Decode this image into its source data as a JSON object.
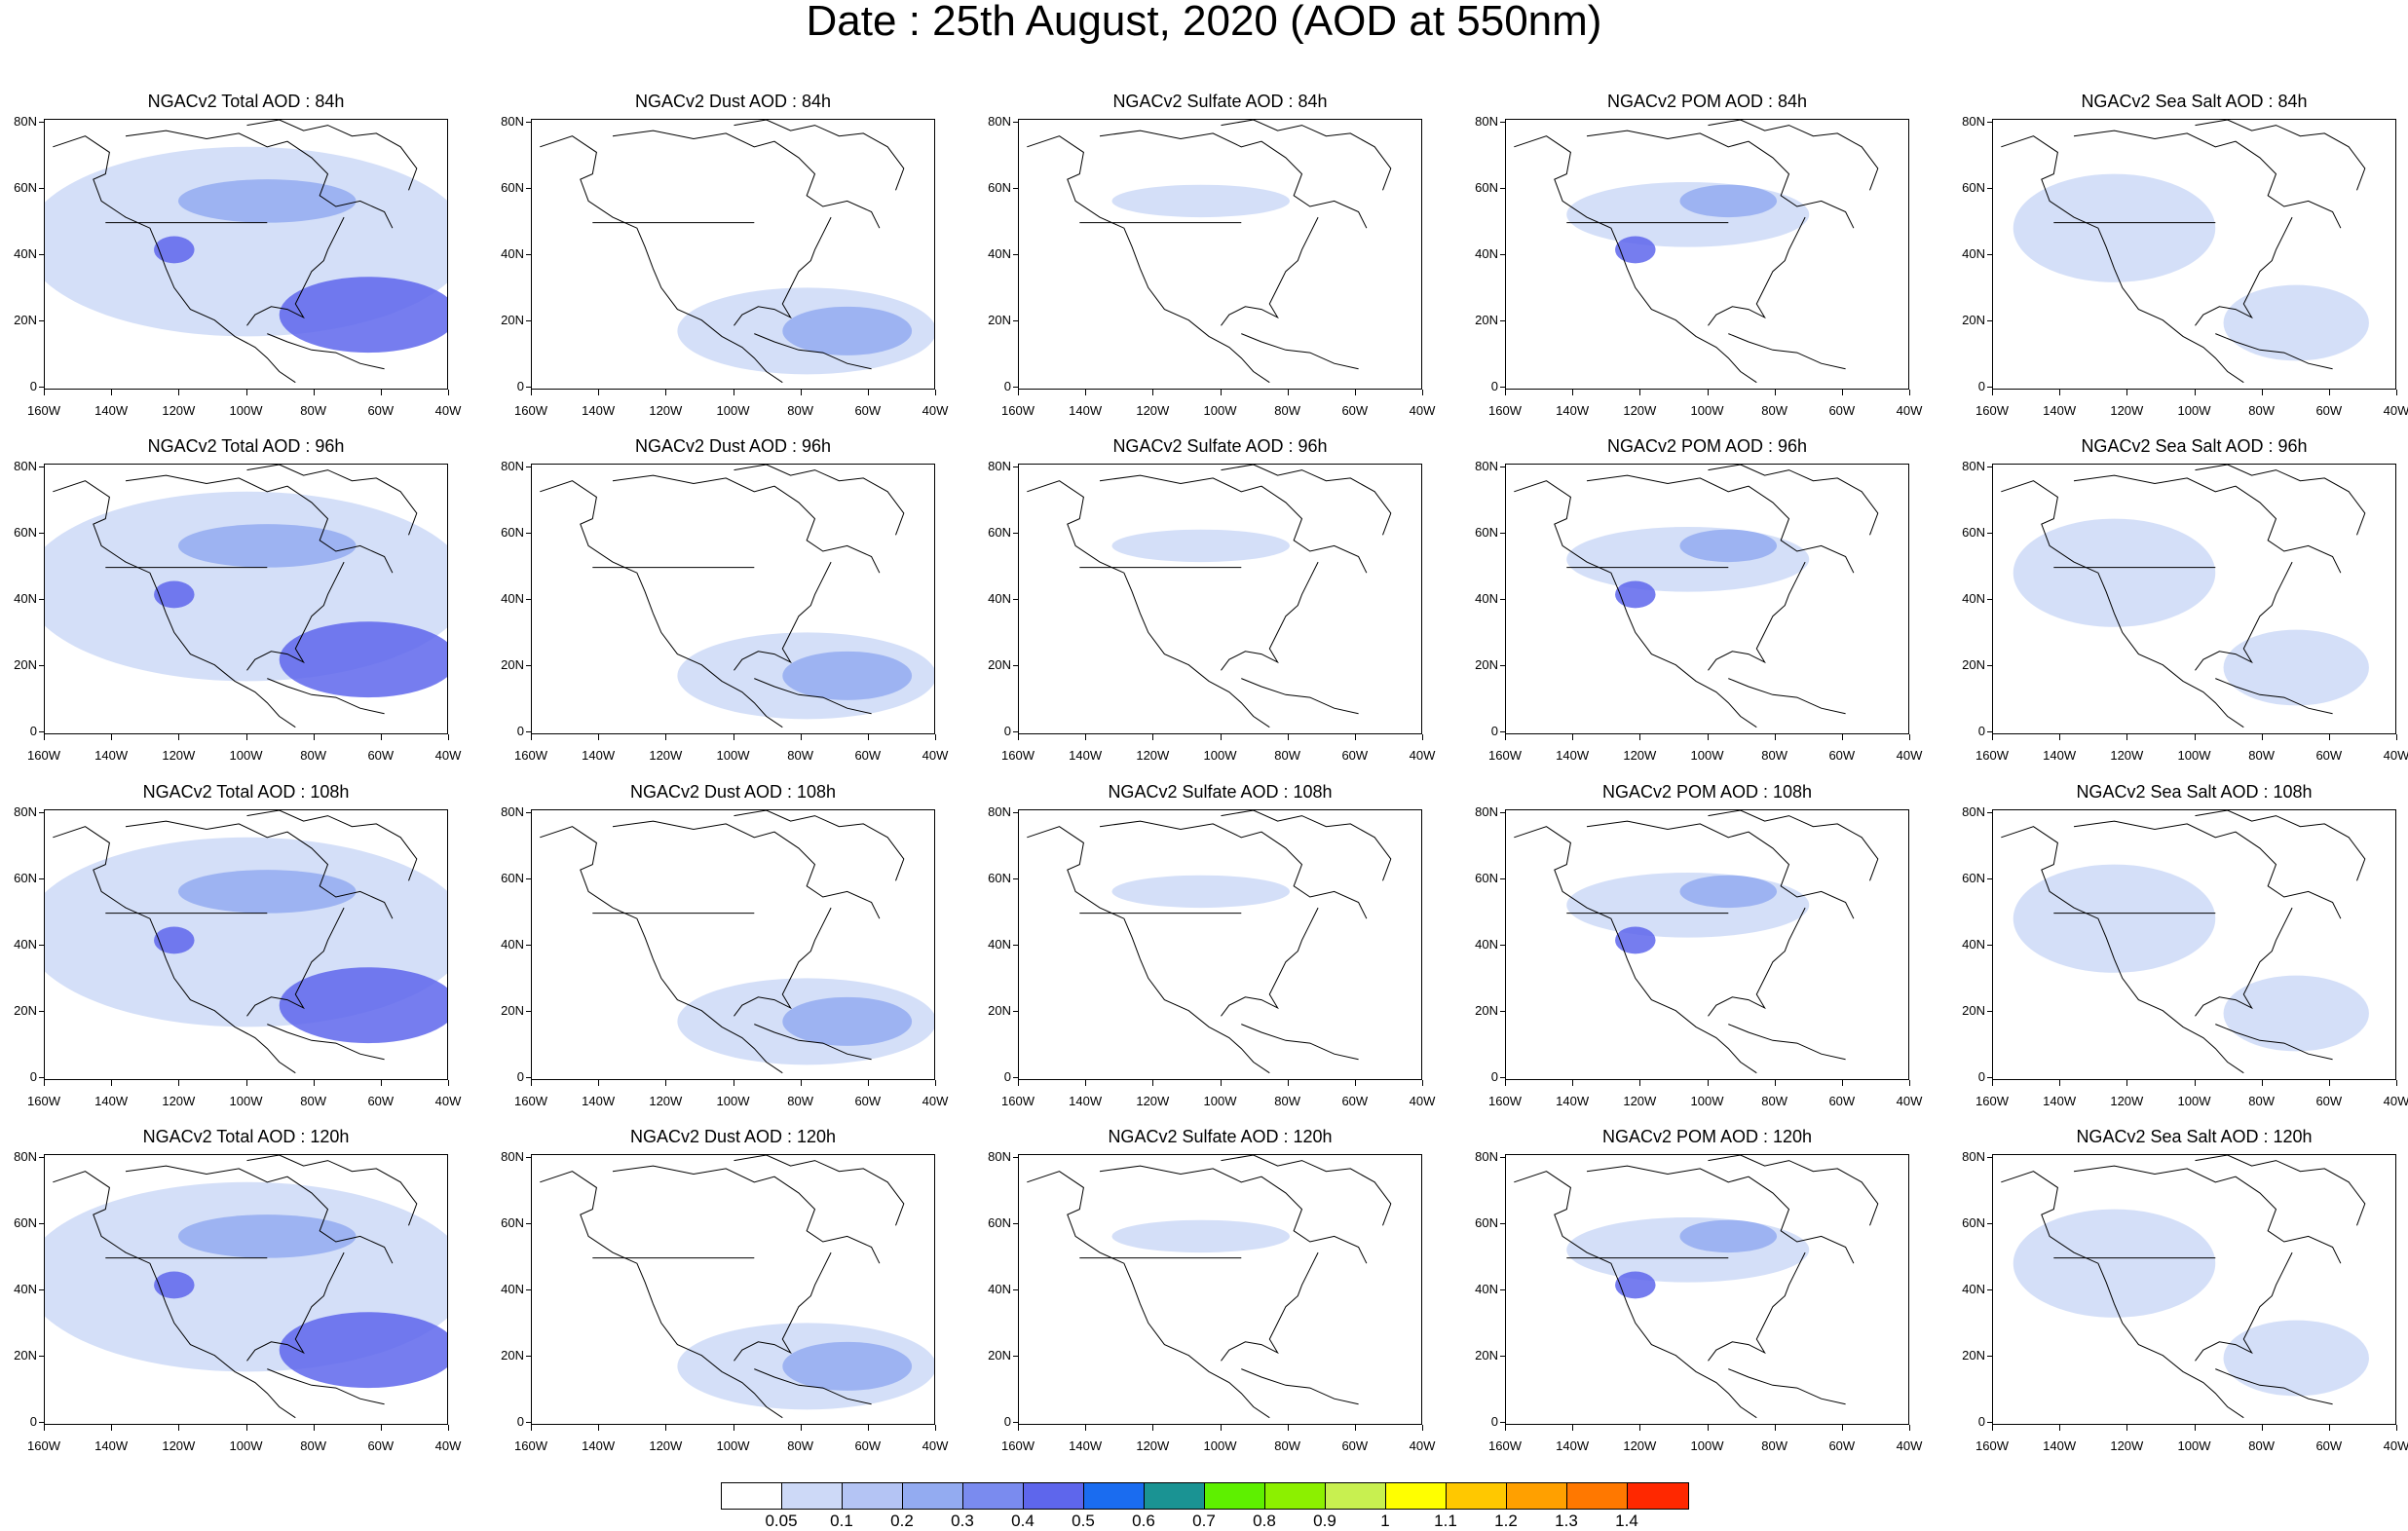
{
  "title": "Date : 25th August, 2020 (AOD at 550nm)",
  "panel_titles": [
    [
      "NGACv2 Total AOD : 84h",
      "NGACv2 Dust AOD : 84h",
      "NGACv2 Sulfate AOD : 84h",
      "NGACv2 POM AOD : 84h",
      "NGACv2 Sea Salt AOD : 84h"
    ],
    [
      "NGACv2 Total AOD : 96h",
      "NGACv2 Dust AOD : 96h",
      "NGACv2 Sulfate AOD : 96h",
      "NGACv2 POM AOD : 96h",
      "NGACv2 Sea Salt AOD : 96h"
    ],
    [
      "NGACv2 Total AOD : 108h",
      "NGACv2 Dust AOD : 108h",
      "NGACv2 Sulfate AOD : 108h",
      "NGACv2 POM AOD : 108h",
      "NGACv2 Sea Salt AOD : 108h"
    ],
    [
      "NGACv2 Total AOD : 120h",
      "NGACv2 Dust AOD : 120h",
      "NGACv2 Sulfate AOD : 120h",
      "NGACv2 POM AOD : 120h",
      "NGACv2 Sea Salt  AOD : 120h"
    ]
  ],
  "lat_labels": [
    "80N",
    "60N",
    "40N",
    "20N",
    "0"
  ],
  "lon_labels": [
    "160W",
    "140W",
    "120W",
    "100W",
    "80W",
    "60W",
    "40W"
  ],
  "colorbar": {
    "labels": [
      "0.05",
      "0.1",
      "0.2",
      "0.3",
      "0.4",
      "0.5",
      "0.6",
      "0.7",
      "0.8",
      "0.9",
      "1",
      "1.1",
      "1.2",
      "1.3",
      "1.4"
    ],
    "colors": [
      "#ffffff",
      "#cdd9f7",
      "#b4c4f4",
      "#93abf1",
      "#7a8bef",
      "#5e66ec",
      "#1a6cf0",
      "#1a9393",
      "#5ef000",
      "#8cf000",
      "#c8f050",
      "#ffff00",
      "#ffc800",
      "#ffa000",
      "#ff7800",
      "#ff2800"
    ]
  },
  "colors": {
    "coast": "#000000",
    "aod_low": "#cdd9f7",
    "aod_mid": "#93abf1",
    "aod_high": "#5e66ec"
  }
}
